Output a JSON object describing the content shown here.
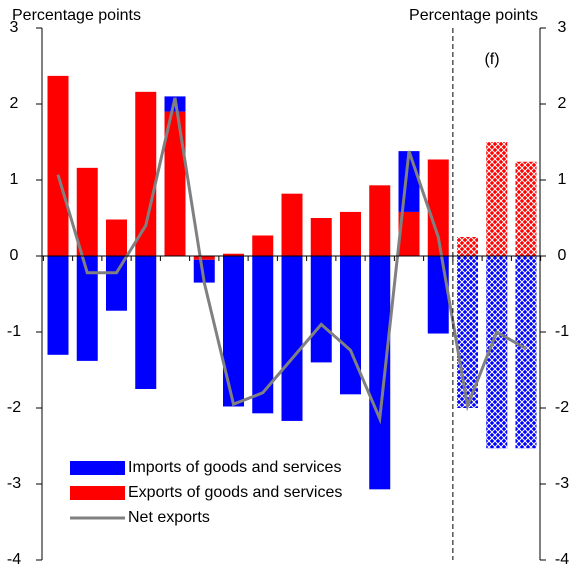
{
  "chart_data": {
    "type": "bar",
    "y_label": "Percentage points",
    "y2_label": "Percentage points",
    "annotation": "(f)",
    "categories": [
      null,
      null,
      null,
      null,
      null,
      null,
      null,
      null,
      null,
      null,
      null,
      null,
      null,
      null,
      null,
      null,
      null
    ],
    "series": [
      {
        "name": "Imports of goods and services",
        "color": "#0000ff",
        "kind": "bar",
        "values": [
          -1.3,
          -1.38,
          -0.72,
          -1.75,
          0.2,
          -0.3,
          -1.98,
          -2.07,
          -2.17,
          -1.4,
          -1.82,
          -3.07,
          0.8,
          -1.02,
          -2.0,
          -2.53,
          -2.53
        ]
      },
      {
        "name": "Exports of goods and services",
        "color": "#ff0000",
        "kind": "bar",
        "values": [
          2.37,
          1.16,
          0.48,
          2.16,
          1.9,
          -0.05,
          0.03,
          0.27,
          0.82,
          0.5,
          0.58,
          0.93,
          0.58,
          1.27,
          0.25,
          1.5,
          1.24
        ]
      },
      {
        "name": "Net exports",
        "color": "#808080",
        "kind": "line",
        "values": [
          1.07,
          -0.22,
          -0.22,
          0.4,
          2.08,
          -0.35,
          -1.95,
          -1.8,
          -1.35,
          -0.9,
          -1.24,
          -2.14,
          1.38,
          0.25,
          -1.97,
          -1.0,
          -1.22
        ]
      }
    ],
    "hatched_from_index": 14,
    "ylim": [
      -4,
      3
    ],
    "yticks": [
      -4,
      -3,
      -2,
      -1,
      0,
      1,
      2,
      3
    ],
    "y2lim": [
      -4,
      3
    ],
    "y2ticks": [
      -4,
      -3,
      -2,
      -1,
      0,
      1,
      2,
      3
    ]
  }
}
